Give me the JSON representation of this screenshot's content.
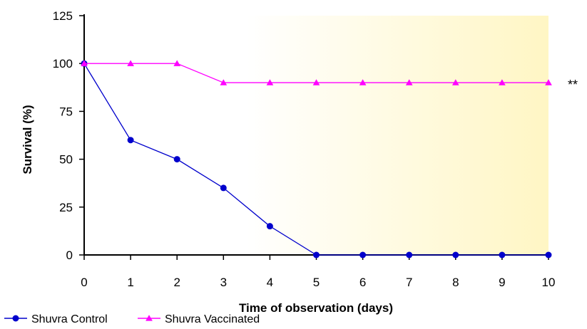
{
  "chart_data": {
    "type": "line",
    "x": [
      0,
      1,
      2,
      3,
      4,
      5,
      6,
      7,
      8,
      9,
      10
    ],
    "xlabel": "Time of observation (days)",
    "ylabel": "Survival (%)",
    "xlim": [
      0,
      10
    ],
    "ylim": [
      0,
      125
    ],
    "yticks": [
      0,
      25,
      50,
      75,
      100,
      125
    ],
    "xticks": [
      0,
      1,
      2,
      3,
      4,
      5,
      6,
      7,
      8,
      9,
      10
    ],
    "grid": false,
    "legend_position": "bottom",
    "background": "gradient white to light yellow",
    "series": [
      {
        "name": "Shuvra Control",
        "values": [
          100,
          60,
          50,
          35,
          15,
          0,
          0,
          0,
          0,
          0,
          0
        ],
        "color": "#0000CC",
        "marker": "circle"
      },
      {
        "name": "Shuvra Vaccinated",
        "values": [
          100,
          100,
          100,
          90,
          90,
          90,
          90,
          90,
          90,
          90,
          90
        ],
        "color": "#FF00FF",
        "marker": "triangle"
      }
    ],
    "annotations": [
      {
        "text": "**",
        "series": "Shuvra Vaccinated",
        "x": 10
      }
    ]
  }
}
